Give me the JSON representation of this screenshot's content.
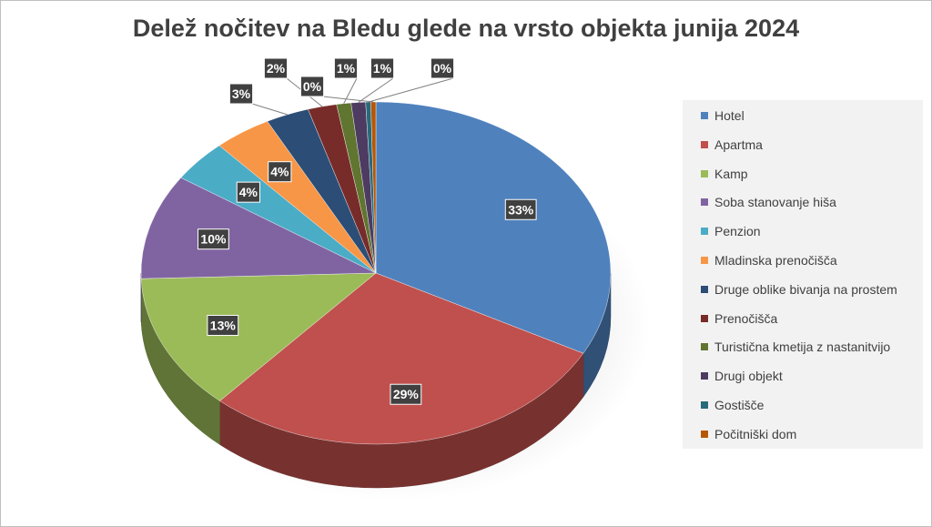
{
  "chart_data": {
    "type": "pie",
    "title": "Delež nočitev na Bledu glede na vrsto objekta junija 2024",
    "categories": [
      "Hotel",
      "Apartma",
      "Kamp",
      "Soba stanovanje hiša",
      "Penzion",
      "Mladinska prenočišča",
      "Druge oblike bivanja na prostem",
      "Prenočišča",
      "Turistična kmetija z nastanitvijo",
      "Drugi objekt",
      "Gostišče",
      "Počitniški dom"
    ],
    "values": [
      33,
      29,
      13,
      10,
      4,
      4,
      3,
      2,
      1,
      1,
      0,
      0
    ],
    "data_labels": [
      "33%",
      "29%",
      "13%",
      "10%",
      "4%",
      "4%",
      "3%",
      "2%",
      "1%",
      "1%",
      "0%",
      "0%"
    ],
    "colors": [
      "#4f81bd",
      "#c0504d",
      "#9bbb59",
      "#8064a2",
      "#4bacc6",
      "#f79646",
      "#2c4d75",
      "#772c2a",
      "#5f7530",
      "#4d3b62",
      "#276a7c",
      "#b65708"
    ],
    "legend": "right",
    "style": "3d"
  }
}
